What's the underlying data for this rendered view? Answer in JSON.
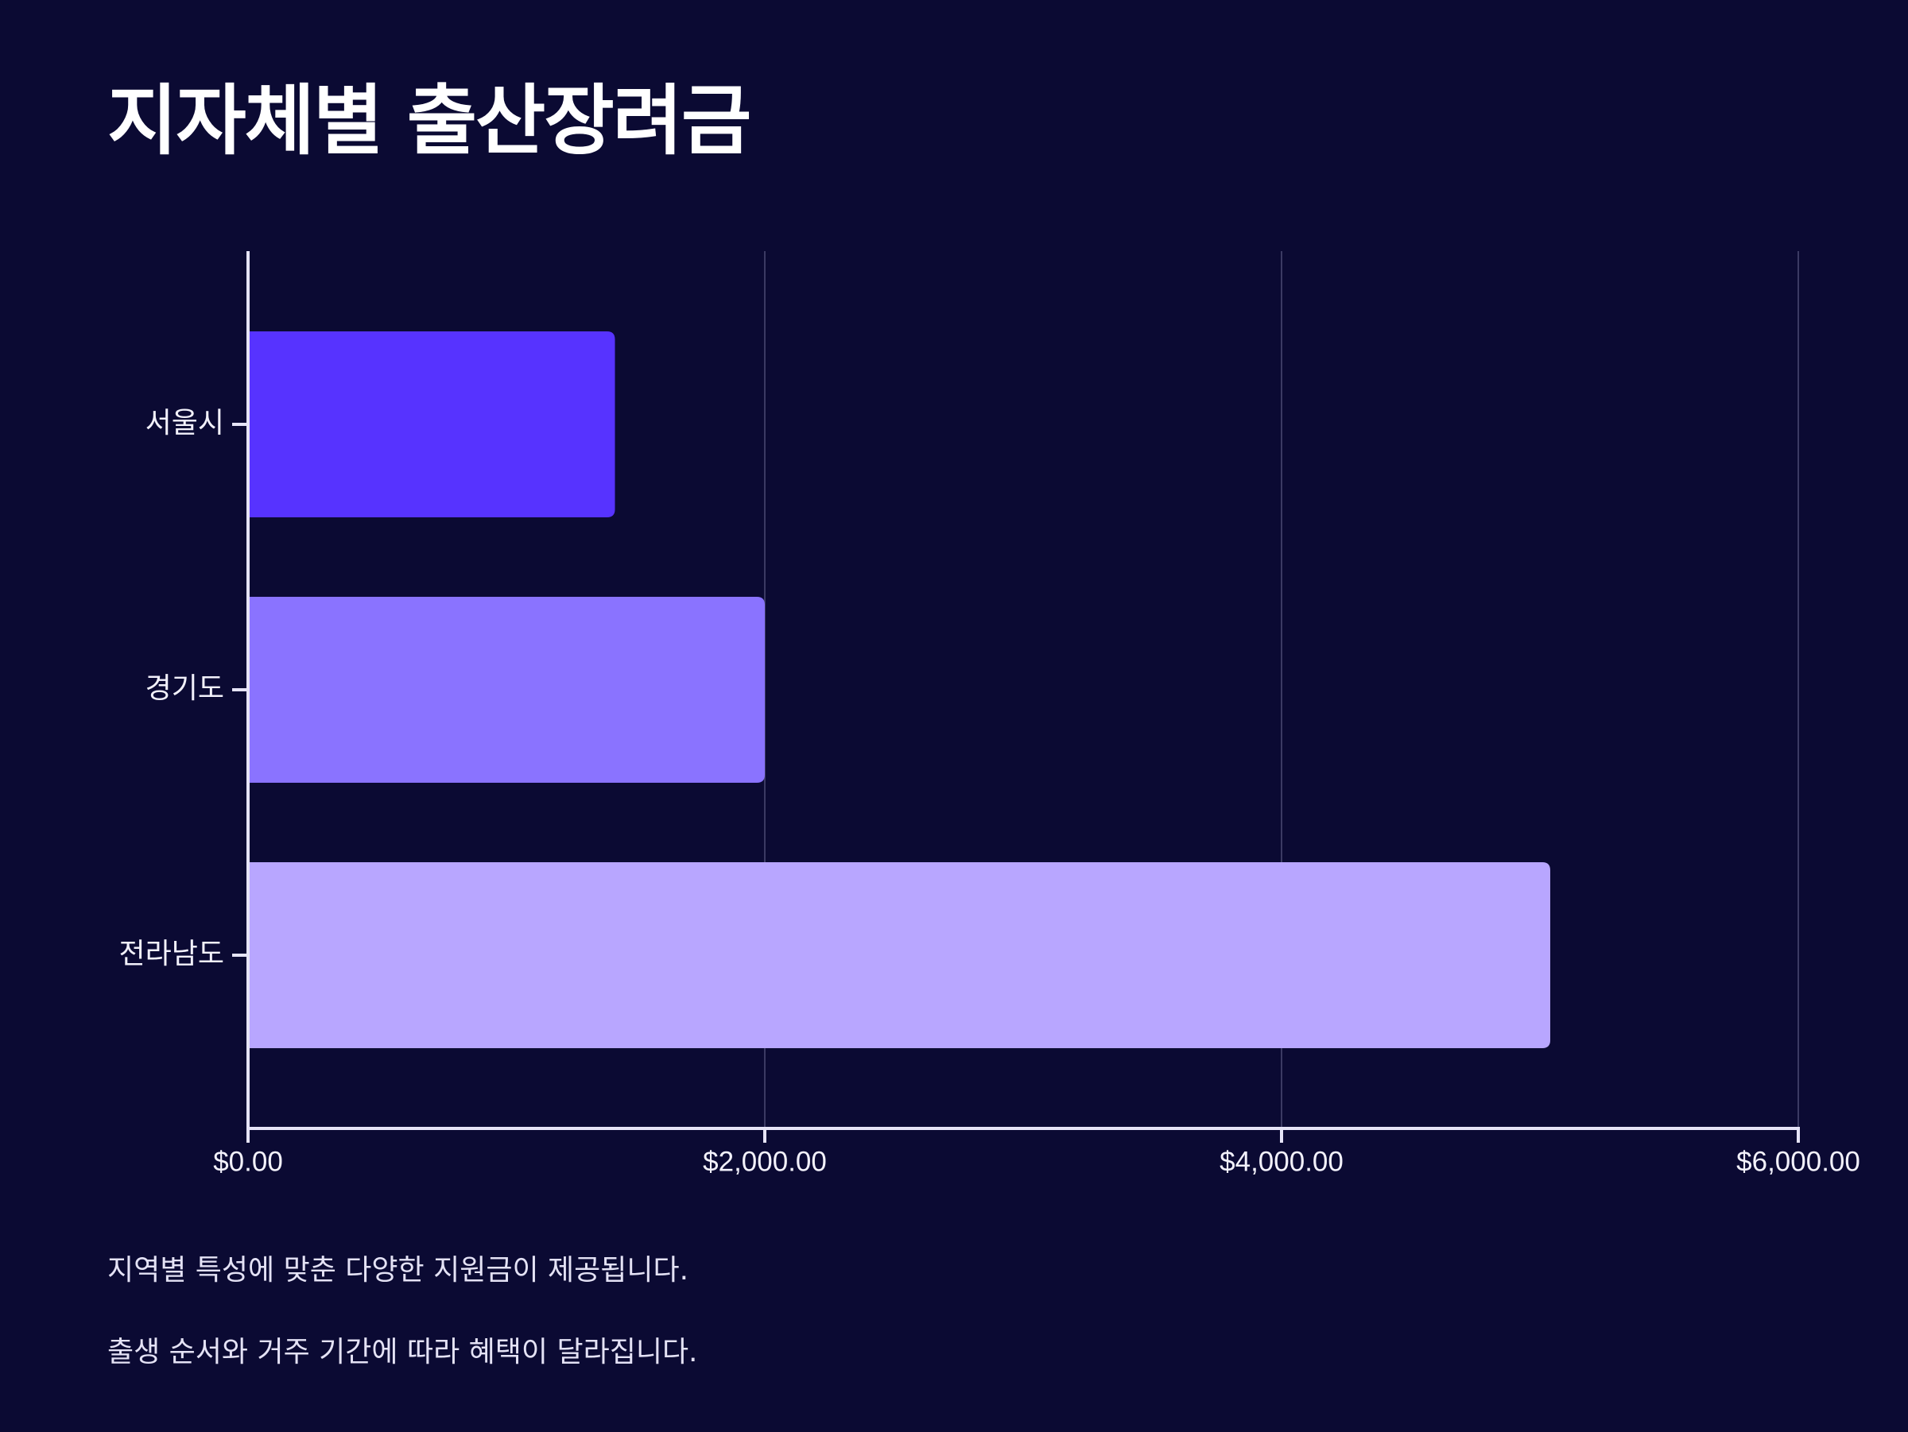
{
  "title": "지자체별 출산장려금",
  "chart_data": {
    "type": "bar",
    "orientation": "horizontal",
    "categories": [
      "서울시",
      "경기도",
      "전라남도"
    ],
    "values": [
      1420,
      2000,
      5040
    ],
    "colors": [
      "#5733ff",
      "#8a73ff",
      "#b8a6ff"
    ],
    "xlim": [
      0,
      6000
    ],
    "xticks": [
      0,
      2000,
      4000,
      6000
    ],
    "tick_labels": [
      "$0.00",
      "$2,000.00",
      "$4,000.00",
      "$6,000.00"
    ],
    "grid": "vertical",
    "xlabel": "",
    "ylabel": ""
  },
  "notes": [
    "지역별 특성에 맞춘 다양한 지원금이 제공됩니다.",
    "출생 순서와 거주 기간에 따라 혜택이 달라집니다."
  ]
}
